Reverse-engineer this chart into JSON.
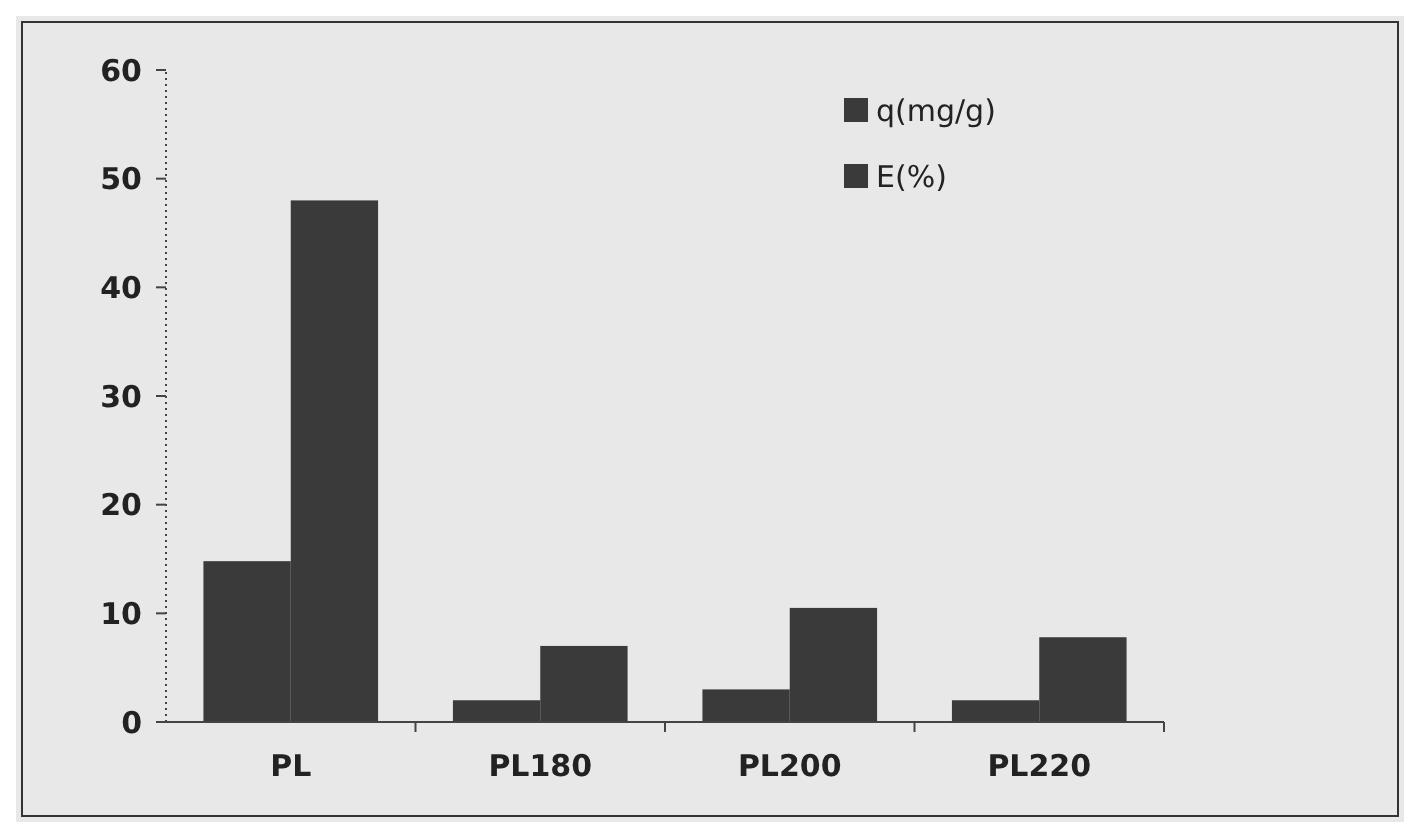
{
  "chart_data": {
    "type": "bar",
    "categories": [
      "PL",
      "PL180",
      "PL200",
      "PL220"
    ],
    "series": [
      {
        "name": "q(mg/g)",
        "color": "#3a3a3a",
        "values": [
          14.8,
          2,
          3,
          2
        ]
      },
      {
        "name": "E(%)",
        "color": "#3a3a3a",
        "values": [
          48,
          7,
          10.5,
          7.8
        ]
      }
    ],
    "ylim": [
      0,
      60
    ],
    "yticks": [
      0,
      10,
      20,
      30,
      40,
      50,
      60
    ],
    "grid": false,
    "legend": "top right"
  }
}
